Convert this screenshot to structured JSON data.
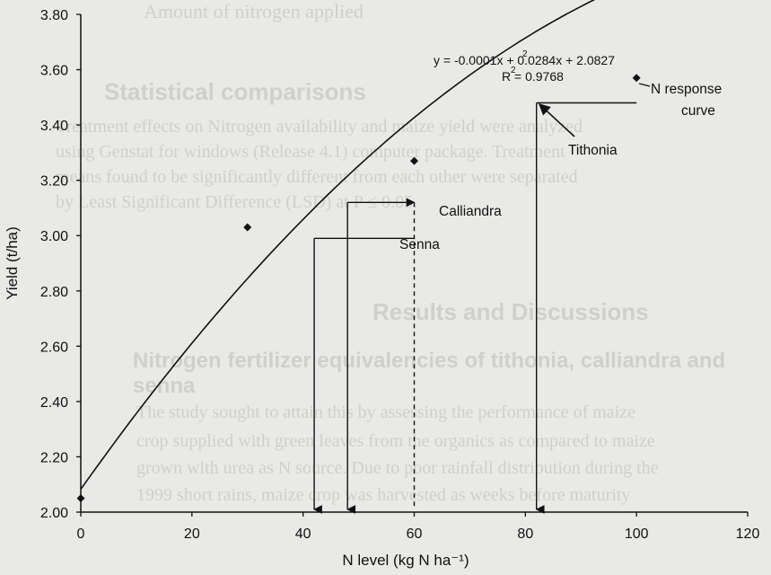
{
  "background_text": [
    {
      "text": "Amount of nitrogen applied",
      "heading": false
    },
    {
      "text": "Statistical comparisons",
      "heading": true
    },
    {
      "text": "Treatment effects on Nitrogen availability and maize yield were analyzed",
      "heading": false
    },
    {
      "text": "using Genstat for windows (Release 4.1) computer package. Treatment",
      "heading": false
    },
    {
      "text": "means found to be significantly different from each other were separated",
      "heading": false
    },
    {
      "text": "by Least Significant Difference (LSD) at P ≤ 0.05.",
      "heading": false
    },
    {
      "text": "Results and Discussions",
      "heading": true
    },
    {
      "text": "Nitrogen fertilizer equivalencies of tithonia, calliandra and",
      "heading": true
    },
    {
      "text": "senna",
      "heading": true
    },
    {
      "text": "The study sought to attain this by assessing the performance of maize",
      "heading": false
    },
    {
      "text": "crop supplied with green leaves from the organics as compared to maize",
      "heading": false
    },
    {
      "text": "grown with urea as N source. Due to poor rainfall distribution during the",
      "heading": false
    },
    {
      "text": "1999 short rains, maize crop was harvested as weeks before maturity",
      "heading": false
    }
  ],
  "chart_data": {
    "type": "scatter",
    "title": "",
    "xlabel": "N level (kg N ha⁻¹)",
    "ylabel": "Yield (t/ha)",
    "xlim": [
      0,
      120
    ],
    "ylim": [
      2.0,
      3.8
    ],
    "x_ticks": [
      0,
      20,
      40,
      60,
      80,
      100,
      120
    ],
    "y_ticks": [
      "2.00",
      "2.20",
      "2.40",
      "2.60",
      "2.80",
      "3.00",
      "3.20",
      "3.40",
      "3.60",
      "3.80"
    ],
    "grid": false,
    "series": [
      {
        "name": "",
        "values": [
          {
            "x": 0,
            "y": 2.05
          },
          {
            "x": 30,
            "y": 3.03
          },
          {
            "x": 60,
            "y": 3.27
          },
          {
            "x": 100,
            "y": 3.57
          }
        ]
      }
    ],
    "fit_curve": {
      "name": "N response curve",
      "a": -0.0001,
      "b": 0.0284,
      "c": 2.0827,
      "x_range": [
        0,
        100
      ],
      "equation_label": "y = -0.0001x  + 0.0284x + 2.0827",
      "equation_superscript": "2",
      "r2_label": "R  = 0.9768",
      "r2_superscript": "2"
    },
    "equivalence_lines": [
      {
        "name": "Senna",
        "x": 42,
        "y": 2.99,
        "style": "solid"
      },
      {
        "name": "Calliandra",
        "x": 48,
        "y": 3.12,
        "style": "solid"
      },
      {
        "name": "Tithonia",
        "x": 82,
        "y": 3.48,
        "style": "solid"
      },
      {
        "name": "",
        "x": 60,
        "y": 3.12,
        "style": "dashed"
      }
    ],
    "annotations": [
      {
        "text": "N response",
        "target": "curve"
      },
      {
        "text": "curve",
        "target": "curve"
      },
      {
        "text": "Tithonia",
        "target": "arrow"
      },
      {
        "text": "Calliandra",
        "target": "none"
      },
      {
        "text": "Senna",
        "target": "none"
      }
    ]
  }
}
